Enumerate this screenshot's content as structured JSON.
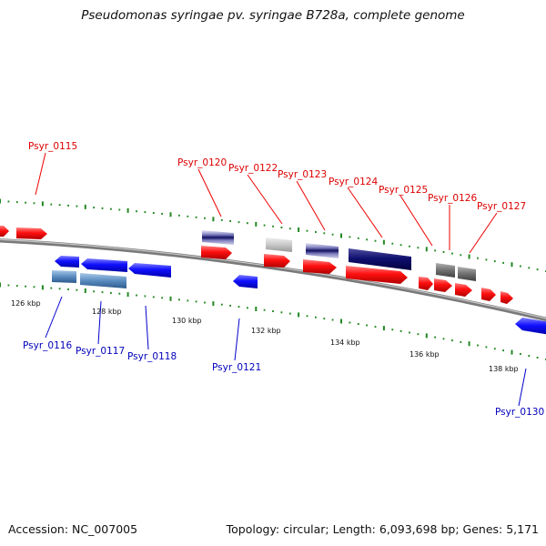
{
  "title": "Pseudomonas syringae pv. syringae B728a, complete genome",
  "footer": {
    "accession": "Accession: NC_007005",
    "stats": "Topology: circular; Length: 6,093,698 bp; Genes: 5,171"
  },
  "colors": {
    "forward_gene": "#ff0000",
    "reverse_gene": "#0000ff",
    "forward_label": "#dd0000",
    "reverse_label": "#0000bb",
    "tick": "#228822",
    "backbone": "#888888"
  },
  "scale_labels": [
    "126 kbp",
    "128 kbp",
    "130 kbp",
    "132 kbp",
    "134 kbp",
    "136 kbp",
    "138 kbp"
  ],
  "forward_labels": [
    "Psyr_0115",
    "Psyr_0120",
    "Psyr_0122",
    "Psyr_0123",
    "Psyr_0124",
    "Psyr_0125",
    "Psyr_0126",
    "Psyr_0127"
  ],
  "reverse_labels": [
    "Psyr_0116",
    "Psyr_0117",
    "Psyr_0118",
    "Psyr_0121",
    "Psyr_0130"
  ],
  "feature_tracks": [
    "dark-blue",
    "light-blue",
    "grey"
  ]
}
